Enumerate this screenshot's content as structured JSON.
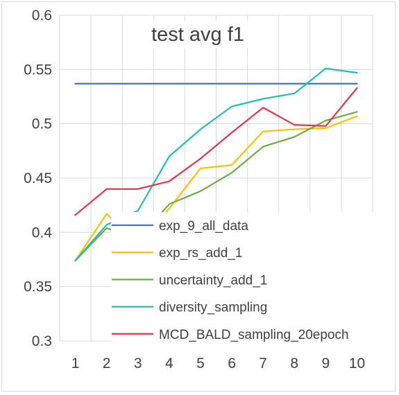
{
  "chart_data": {
    "type": "line",
    "title": "test avg f1",
    "xlabel": "",
    "ylabel": "",
    "categories": [
      "1",
      "2",
      "3",
      "4",
      "5",
      "6",
      "7",
      "8",
      "9",
      "10"
    ],
    "ylim": [
      0.3,
      0.6
    ],
    "y_ticks": [
      "0.3",
      "0.35",
      "0.4",
      "0.45",
      "0.5",
      "0.55",
      "0.6"
    ],
    "grid": "both",
    "legend_position": "bottom-right",
    "series": [
      {
        "name": "exp_9_all_data",
        "color": "#4472c4",
        "values": [
          0.537,
          0.537,
          0.537,
          0.537,
          0.537,
          0.537,
          0.537,
          0.537,
          0.537,
          0.537
        ]
      },
      {
        "name": "exp_rs_add_1",
        "color": "#ffc000",
        "values": [
          0.374,
          0.417,
          0.391,
          0.422,
          0.459,
          0.462,
          0.493,
          0.495,
          0.496,
          0.507
        ]
      },
      {
        "name": "uncertainty_add_1",
        "color": "#70ad47",
        "values": [
          0.374,
          0.404,
          0.393,
          0.426,
          0.438,
          0.455,
          0.479,
          0.488,
          0.503,
          0.511
        ]
      },
      {
        "name": "diversity_sampling",
        "color": "#26bcb0",
        "values": [
          0.374,
          0.407,
          0.42,
          0.47,
          0.495,
          0.516,
          0.523,
          0.528,
          0.551,
          0.547
        ]
      },
      {
        "name": "MCD_BALD_sampling_20epoch",
        "color": "#e0384f",
        "values": [
          0.416,
          0.44,
          0.44,
          0.447,
          0.468,
          0.492,
          0.515,
          0.499,
          0.498,
          0.533
        ]
      }
    ]
  }
}
